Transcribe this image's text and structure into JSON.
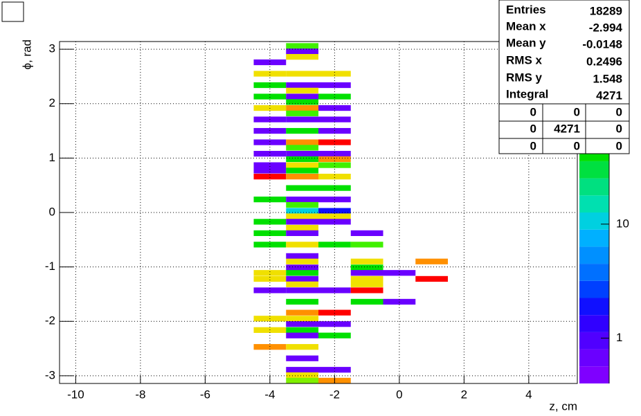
{
  "chart_data": {
    "type": "heatmap",
    "x_label": "z, cm",
    "y_label": "ϕ, rad",
    "xlim": [
      -10.5,
      5.5
    ],
    "ylim": [
      -3.1416,
      3.1416
    ],
    "xticks": [
      -10,
      -8,
      -6,
      -4,
      -2,
      0,
      2,
      4
    ],
    "yticks": [
      -3,
      -2,
      -1,
      0,
      1,
      2,
      3
    ],
    "grid": true,
    "xbin_width": 1,
    "ybin_width": 0.1047,
    "zlim": [
      0.4,
      400
    ],
    "zlog": true,
    "zticks": [
      1,
      10
    ],
    "palette": [
      "#7f00ff",
      "#6a00ff",
      "#5000ff",
      "#3000ff",
      "#1010ff",
      "#0040ff",
      "#0070ff",
      "#0090ff",
      "#00b0ff",
      "#00d0e0",
      "#00e0b0",
      "#00e080",
      "#00e040",
      "#00e000",
      "#40f000",
      "#80f000",
      "#c0f000",
      "#f0e000",
      "#ff9000",
      "#ff0000"
    ],
    "cells": [
      [
        -3,
        3.06,
        70
      ],
      [
        -3,
        2.96,
        0.6
      ],
      [
        -3,
        2.86,
        150
      ],
      [
        -4,
        2.76,
        0.6
      ],
      [
        -4,
        2.55,
        150
      ],
      [
        -3,
        2.55,
        150
      ],
      [
        -2,
        2.55,
        150
      ],
      [
        -4,
        2.34,
        40
      ],
      [
        -3,
        2.34,
        0.6
      ],
      [
        -2,
        2.34,
        0.6
      ],
      [
        -3,
        2.24,
        150
      ],
      [
        -4,
        2.13,
        40
      ],
      [
        -3,
        2.13,
        0.6
      ],
      [
        -2,
        2.13,
        40
      ],
      [
        -3,
        2.03,
        40
      ],
      [
        -4,
        1.92,
        150
      ],
      [
        -3,
        1.92,
        220
      ],
      [
        -2,
        1.92,
        0.6
      ],
      [
        -3,
        1.82,
        70
      ],
      [
        -4,
        1.71,
        0.6
      ],
      [
        -3,
        1.71,
        0.6
      ],
      [
        -2,
        1.71,
        0.6
      ],
      [
        -4,
        1.5,
        0.6
      ],
      [
        -3,
        1.5,
        40
      ],
      [
        -2,
        1.5,
        0.6
      ],
      [
        -4,
        1.29,
        0.6
      ],
      [
        -3,
        1.29,
        220
      ],
      [
        -2,
        1.29,
        350
      ],
      [
        -3,
        1.19,
        70
      ],
      [
        -4,
        1.08,
        0.6
      ],
      [
        -3,
        1.08,
        0.6
      ],
      [
        -2,
        1.08,
        0.6
      ],
      [
        -3,
        0.98,
        40
      ],
      [
        -2,
        0.98,
        220
      ],
      [
        -4,
        0.87,
        0.6
      ],
      [
        -3,
        0.87,
        150
      ],
      [
        -2,
        0.87,
        70
      ],
      [
        -4,
        0.77,
        0.6
      ],
      [
        -3,
        0.77,
        40
      ],
      [
        -4,
        0.66,
        350
      ],
      [
        -3,
        0.66,
        220
      ],
      [
        -2,
        0.66,
        150
      ],
      [
        -3,
        0.45,
        40
      ],
      [
        -2,
        0.45,
        40
      ],
      [
        -4,
        0.24,
        40
      ],
      [
        -3,
        0.24,
        0.6
      ],
      [
        -2,
        0.24,
        0.6
      ],
      [
        -3,
        0.14,
        70
      ],
      [
        -3,
        0.03,
        10
      ],
      [
        -2,
        0.03,
        2
      ],
      [
        -3,
        -0.07,
        150
      ],
      [
        -2,
        -0.07,
        150
      ],
      [
        -4,
        -0.17,
        40
      ],
      [
        -3,
        -0.17,
        0.6
      ],
      [
        -2,
        -0.17,
        0.6
      ],
      [
        -3,
        -0.28,
        150
      ],
      [
        -4,
        -0.38,
        40
      ],
      [
        -3,
        -0.38,
        0.6
      ],
      [
        -1,
        -0.38,
        0.6
      ],
      [
        -4,
        -0.59,
        40
      ],
      [
        -3,
        -0.59,
        150
      ],
      [
        -2,
        -0.59,
        40
      ],
      [
        -1,
        -0.59,
        70
      ],
      [
        -3,
        -0.8,
        0.6
      ],
      [
        -3,
        -0.9,
        150
      ],
      [
        -1,
        -0.9,
        150
      ],
      [
        1,
        -0.9,
        220
      ],
      [
        -3,
        -1.01,
        0.6
      ],
      [
        -1,
        -1.01,
        40
      ],
      [
        -4,
        -1.11,
        150
      ],
      [
        -3,
        -1.11,
        40
      ],
      [
        -1,
        -1.11,
        0.6
      ],
      [
        0,
        -1.11,
        0.6
      ],
      [
        -4,
        -1.22,
        150
      ],
      [
        -3,
        -1.22,
        0.6
      ],
      [
        -1,
        -1.22,
        150
      ],
      [
        1,
        -1.22,
        350
      ],
      [
        -3,
        -1.32,
        150
      ],
      [
        -1,
        -1.32,
        150
      ],
      [
        -4,
        -1.43,
        0.6
      ],
      [
        -3,
        -1.43,
        0.6
      ],
      [
        -2,
        -1.43,
        0.6
      ],
      [
        -1,
        -1.43,
        350
      ],
      [
        -3,
        -1.64,
        40
      ],
      [
        -1,
        -1.64,
        40
      ],
      [
        0,
        -1.64,
        0.6
      ],
      [
        -3,
        -1.84,
        220
      ],
      [
        -2,
        -1.84,
        350
      ],
      [
        -4,
        -1.95,
        150
      ],
      [
        -3,
        -1.95,
        150
      ],
      [
        -3,
        -2.05,
        0.6
      ],
      [
        -2,
        -2.05,
        0.6
      ],
      [
        -4,
        -2.16,
        150
      ],
      [
        -3,
        -2.16,
        40
      ],
      [
        -3,
        -2.26,
        0.6
      ],
      [
        -2,
        -2.26,
        40
      ],
      [
        -4,
        -2.47,
        220
      ],
      [
        -3,
        -2.47,
        150
      ],
      [
        -3,
        -2.68,
        0.6
      ],
      [
        -3,
        -2.89,
        0.6
      ],
      [
        -2,
        -2.89,
        0.6
      ],
      [
        -3,
        -2.99,
        150
      ],
      [
        -3,
        -3.09,
        100
      ],
      [
        -2,
        -3.09,
        220
      ]
    ],
    "stats": [
      {
        "name": "Entries",
        "value": 18289
      },
      {
        "name": "Mean x",
        "value": -2.994
      },
      {
        "name": "Mean y",
        "value": -0.0148
      },
      {
        "name": "RMS x",
        "value": 0.2496
      },
      {
        "name": "RMS y",
        "value": 1.548
      },
      {
        "name": "Integral",
        "value": 4271
      }
    ],
    "overflow": [
      [
        0,
        0,
        0
      ],
      [
        0,
        4271,
        0
      ],
      [
        0,
        0,
        0
      ]
    ]
  }
}
